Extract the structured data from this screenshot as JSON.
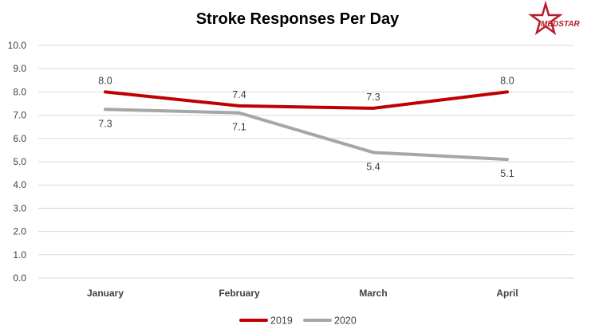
{
  "logo": {
    "text": "MEDSTAR"
  },
  "colors": {
    "series_2019": "#c00000",
    "series_2020": "#a6a6a6",
    "grid": "#d9d9d9",
    "logo": "#b71c2b"
  },
  "chart_data": {
    "type": "line",
    "title": "Stroke Responses Per Day",
    "xlabel": "",
    "ylabel": "",
    "categories": [
      "January",
      "February",
      "March",
      "April"
    ],
    "ylim": [
      0,
      10
    ],
    "ytick_step": 1,
    "yticks": [
      "0.0",
      "1.0",
      "2.0",
      "3.0",
      "4.0",
      "5.0",
      "6.0",
      "7.0",
      "8.0",
      "9.0",
      "10.0"
    ],
    "grid": true,
    "legend": "bottom",
    "series": [
      {
        "name": "2019",
        "values": [
          8.0,
          7.4,
          7.3,
          8.0
        ],
        "labels": [
          "8.0",
          "7.4",
          "7.3",
          "8.0"
        ],
        "color": "#c00000",
        "label_position": "above"
      },
      {
        "name": "2020",
        "values": [
          7.25,
          7.1,
          5.4,
          5.1
        ],
        "labels": [
          "7.3",
          "7.1",
          "5.4",
          "5.1"
        ],
        "color": "#a6a6a6",
        "label_position": "below"
      }
    ]
  }
}
